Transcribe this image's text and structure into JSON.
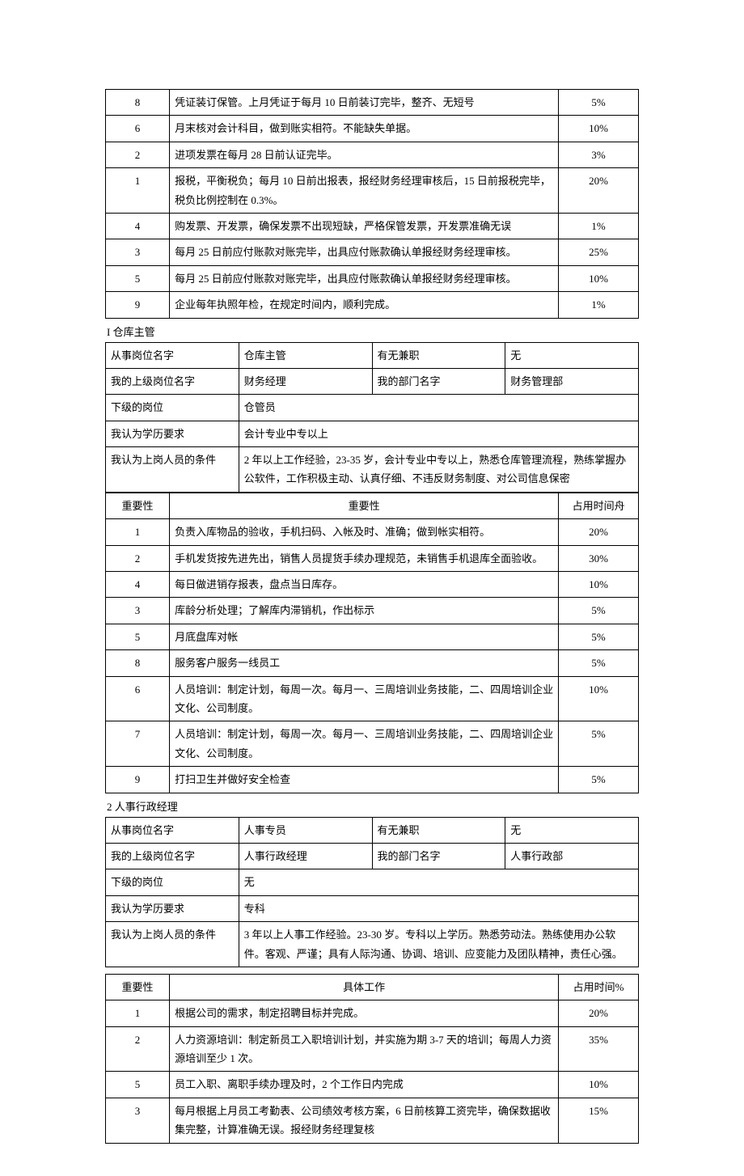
{
  "table1": {
    "rows": [
      {
        "n": "8",
        "d": "凭证装订保管。上月凭证于每月 10 日前装订完毕，整齐、无短号",
        "p": "5%"
      },
      {
        "n": "6",
        "d": "月末核对会计科目，做到账实相符。不能缺失单据。",
        "p": "10%"
      },
      {
        "n": "2",
        "d": "进项发票在每月 28 日前认证完毕。",
        "p": "3%"
      },
      {
        "n": "1",
        "d": "报税，平衡税负；每月 10 日前出报表，报经财务经理审核后，15 日前报税完毕，税负比例控制在 0.3%。",
        "p": "20%"
      },
      {
        "n": "4",
        "d": "购发票、开发票，确保发票不出现短缺，严格保管发票，开发票准确无误",
        "p": "1%"
      },
      {
        "n": "3",
        "d": "每月 25 日前应付账款对账完毕，出具应付账款确认单报经财务经理审核。",
        "p": "25%"
      },
      {
        "n": "5",
        "d": "每月 25 日前应付账款对账完毕，出具应付账款确认单报经财务经理审核。",
        "p": "10%"
      },
      {
        "n": "9",
        "d": "企业每年执照年检，在规定时间内，顺利完成。",
        "p": "1%"
      }
    ]
  },
  "section1": {
    "title": "I 仓库主管",
    "header": {
      "l1c1": "从事岗位名字",
      "l1c2": "仓库主管",
      "l1c3": "有无兼职",
      "l1c4": "无",
      "l2c1": "我的上级岗位名字",
      "l2c2": "财务经理",
      "l2c3": "我的部门名字",
      "l2c4": "财务管理部",
      "l3c1": "下级的岗位",
      "l3c2": "仓管员",
      "l4c1": "我认为学历要求",
      "l4c2": "会计专业中专以上",
      "l5c1": "我认为上岗人员的条件",
      "l5c2": "2 年以上工作经验，23-35 岁，会计专业中专以上，熟悉仓库管理流程，熟练掌握办公软件，工作积极主动、认真仔细、不违反财务制度、对公司信息保密"
    },
    "cols": {
      "c1": "重要性",
      "c2": "重要性",
      "c3": "占用时间舟"
    },
    "rows": [
      {
        "n": "1",
        "d": "负责入库物品的验收，手机扫码、入帐及时、准确；做到帐实相符。",
        "p": "20%"
      },
      {
        "n": "2",
        "d": "手机发货按先进先出，销售人员提货手续办理规范，未销售手机退库全面验收。",
        "p": "30%"
      },
      {
        "n": "4",
        "d": "每日做进销存报表，盘点当日库存。",
        "p": "10%"
      },
      {
        "n": "3",
        "d": "库龄分析处理；了解库内滞销机，作出标示",
        "p": "5%"
      },
      {
        "n": "5",
        "d": "月底盘库对帐",
        "p": "5%"
      },
      {
        "n": "8",
        "d": "服务客户服务一线员工",
        "p": "5%"
      },
      {
        "n": "6",
        "d": "人员培训：制定计划，每周一次。每月一、三周培训业务技能，二、四周培训企业文化、公司制度。",
        "p": "10%"
      },
      {
        "n": "7",
        "d": "人员培训：制定计划，每周一次。每月一、三周培训业务技能，二、四周培训企业文化、公司制度。",
        "p": "5%"
      },
      {
        "n": "9",
        "d": "打扫卫生并做好安全检查",
        "p": "5%"
      }
    ]
  },
  "section2": {
    "title": "2 人事行政经理",
    "header": {
      "l1c1": "从事岗位名字",
      "l1c2": "人事专员",
      "l1c3": "有无兼职",
      "l1c4": "无",
      "l2c1": "我的上级岗位名字",
      "l2c2": "人事行政经理",
      "l2c3": "我的部门名字",
      "l2c4": "人事行政部",
      "l3c1": "下级的岗位",
      "l3c2": "无",
      "l4c1": "我认为学历要求",
      "l4c2": "专科",
      "l5c1": "我认为上岗人员的条件",
      "l5c2": "3 年以上人事工作经验。23-30 岁。专科以上学历。熟悉劳动法。熟练使用办公软件。客观、严谨；具有人际沟通、协调、培训、应变能力及团队精神，责任心强。"
    },
    "cols": {
      "c1": "重要性",
      "c2": "具体工作",
      "c3": "占用时间%"
    },
    "rows": [
      {
        "n": "1",
        "d": "根据公司的需求，制定招聘目标并完成。",
        "p": "20%"
      },
      {
        "n": "2",
        "d": "人力资源培训：制定新员工入职培训计划，并实施为期 3-7 天的培训；每周人力资源培训至少 1 次。",
        "p": "35%"
      },
      {
        "n": "5",
        "d": "员工入职、离职手续办理及时，2 个工作日内完成",
        "p": "10%"
      },
      {
        "n": "3",
        "d": "每月根据上月员工考勤表、公司绩效考核方案，6 日前核算工资完毕，确保数据收集完整，计算准确无误。报经财务经理复核",
        "p": "15%"
      }
    ]
  }
}
